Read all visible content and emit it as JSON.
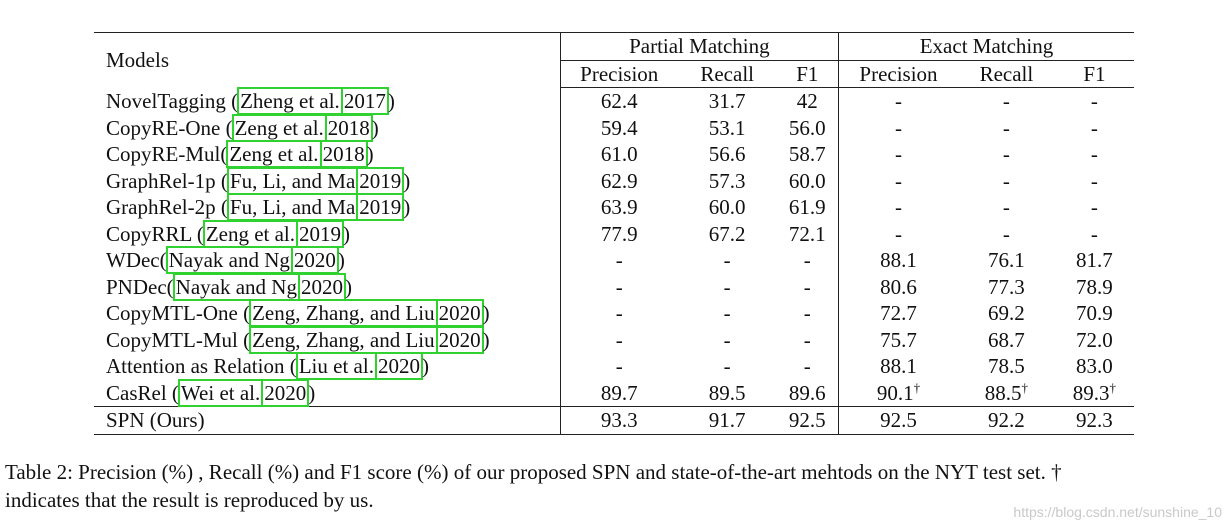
{
  "header": {
    "models": "Models",
    "partial": "Partial Matching",
    "exact": "Exact Matching",
    "precision": "Precision",
    "recall": "Recall",
    "f1": "F1"
  },
  "rows": [
    {
      "name": "NovelTagging (",
      "cite_a": "Zheng et al.",
      "cite_b": "2017",
      "close": ")",
      "p1": "62.4",
      "r1": "31.7",
      "f1": "42",
      "p2": "-",
      "r2": "-",
      "f2": "-"
    },
    {
      "name": "CopyRE-One (",
      "cite_a": "Zeng et al.",
      "cite_b": "2018",
      "close": ")",
      "p1": "59.4",
      "r1": "53.1",
      "f1": "56.0",
      "p2": "-",
      "r2": "-",
      "f2": "-"
    },
    {
      "name": "CopyRE-Mul(",
      "cite_a": "Zeng et al.",
      "cite_b": "2018",
      "close": ")",
      "p1": "61.0",
      "r1": "56.6",
      "f1": "58.7",
      "p2": "-",
      "r2": "-",
      "f2": "-"
    },
    {
      "name": "GraphRel-1p (",
      "cite_a": "Fu, Li, and Ma",
      "cite_b": "2019",
      "close": ")",
      "p1": "62.9",
      "r1": "57.3",
      "f1": "60.0",
      "p2": "-",
      "r2": "-",
      "f2": "-"
    },
    {
      "name": "GraphRel-2p (",
      "cite_a": "Fu, Li, and Ma",
      "cite_b": "2019",
      "close": ")",
      "p1": "63.9",
      "r1": "60.0",
      "f1": "61.9",
      "p2": "-",
      "r2": "-",
      "f2": "-"
    },
    {
      "name": "CopyRRL (",
      "cite_a": "Zeng et al.",
      "cite_b": "2019",
      "close": ")",
      "p1": "77.9",
      "r1": "67.2",
      "f1": "72.1",
      "p2": "-",
      "r2": "-",
      "f2": "-"
    },
    {
      "name": "WDec(",
      "cite_a": "Nayak and Ng",
      "cite_b": "2020",
      "close": ")",
      "p1": "-",
      "r1": "-",
      "f1": "-",
      "p2": "88.1",
      "r2": "76.1",
      "f2": "81.7"
    },
    {
      "name": "PNDec(",
      "cite_a": "Nayak and Ng",
      "cite_b": "2020",
      "close": ")",
      "p1": "-",
      "r1": "-",
      "f1": "-",
      "p2": "80.6",
      "r2": "77.3",
      "f2": "78.9"
    },
    {
      "name": "CopyMTL-One (",
      "cite_a": "Zeng, Zhang, and Liu",
      "cite_b": "2020",
      "close": ")",
      "p1": "-",
      "r1": "-",
      "f1": "-",
      "p2": "72.7",
      "r2": "69.2",
      "f2": "70.9"
    },
    {
      "name": "CopyMTL-Mul (",
      "cite_a": "Zeng, Zhang, and Liu",
      "cite_b": "2020",
      "close": ")",
      "p1": "-",
      "r1": "-",
      "f1": "-",
      "p2": "75.7",
      "r2": "68.7",
      "f2": "72.0"
    },
    {
      "name": "Attention as Relation (",
      "cite_a": "Liu et al.",
      "cite_b": "2020",
      "close": ")",
      "p1": "-",
      "r1": "-",
      "f1": "-",
      "p2": "88.1",
      "r2": "78.5",
      "f2": "83.0"
    },
    {
      "name": "CasRel (",
      "cite_a": "Wei et al.",
      "cite_b": "2020",
      "close": ")",
      "p1": "89.7",
      "r1": "89.5",
      "f1": "89.6",
      "p2": "90.1",
      "r2": "88.5",
      "f2": "89.3"
    }
  ],
  "dagger": "†",
  "ours": {
    "name": "SPN (Ours)",
    "p1": "93.3",
    "r1": "91.7",
    "f1": "92.5",
    "p2": "92.5",
    "r2": "92.2",
    "f2": "92.3"
  },
  "caption": {
    "line1": "Table 2: Precision (%) , Recall (%) and F1 score (%) of our proposed SPN and state-of-the-art mehtods on the NYT test set. †",
    "line2": "indicates that the result is reproduced by us."
  },
  "watermark": "https://blog.csdn.net/sunshine_10"
}
